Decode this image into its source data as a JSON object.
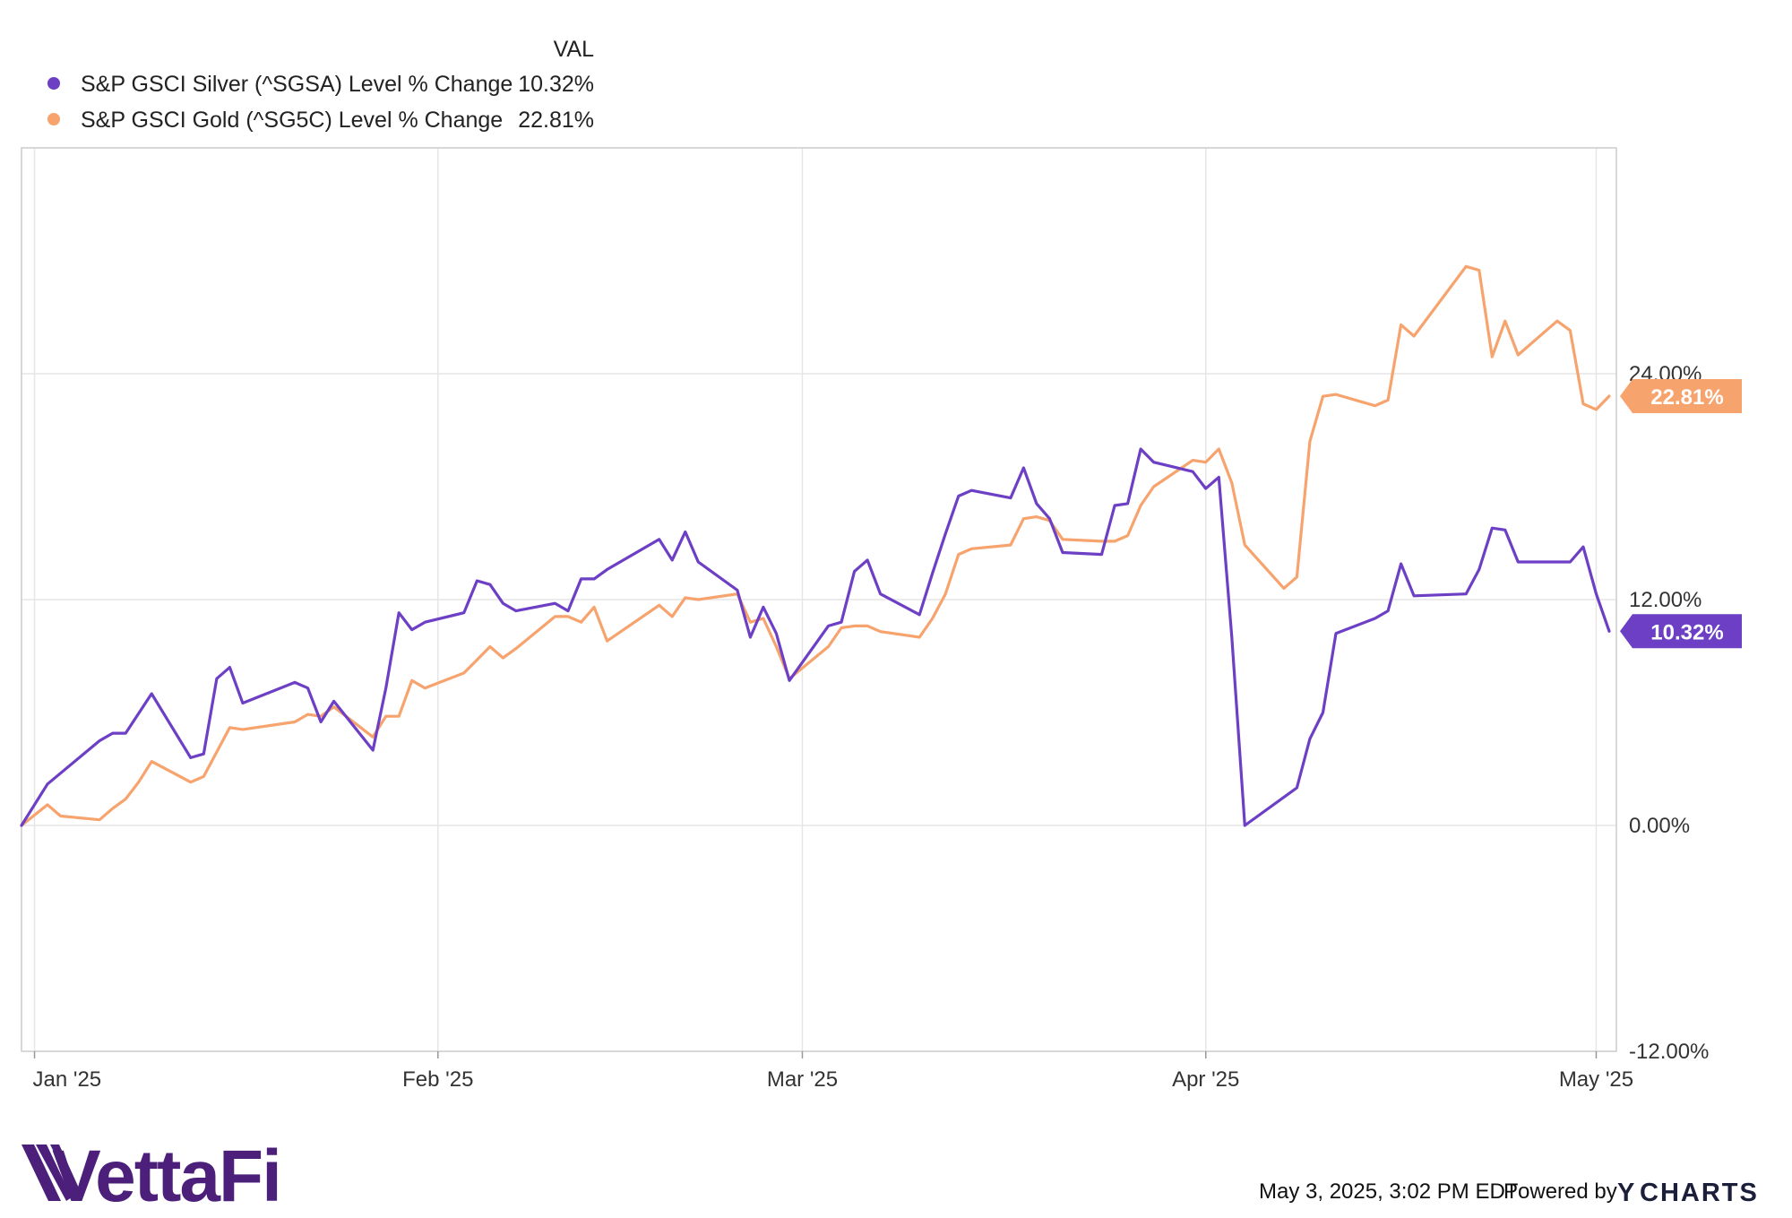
{
  "colors": {
    "silver": "#6c3fc5",
    "gold": "#f7a36d",
    "grid": "#e6e6e6",
    "border": "#cccccc",
    "logo": "#4b1f7a",
    "ycharts_y": "#1f6fd1"
  },
  "legend": {
    "header": "VAL",
    "items": [
      {
        "name": "S&P GSCI Silver (^SGSA) Level % Change",
        "value": "10.32%",
        "color": "#6c3fc5"
      },
      {
        "name": "S&P GSCI Gold (^SG5C) Level % Change",
        "value": "22.81%",
        "color": "#f7a36d"
      }
    ]
  },
  "chart_data": {
    "type": "line",
    "xlim": [
      "2024-12-31",
      "2025-05-02"
    ],
    "ylim": [
      -12,
      36
    ],
    "x_ticks": [
      {
        "date": "2025-01-01",
        "label": "Jan '25"
      },
      {
        "date": "2025-02-01",
        "label": "Feb '25"
      },
      {
        "date": "2025-03-01",
        "label": "Mar '25"
      },
      {
        "date": "2025-04-01",
        "label": "Apr '25"
      },
      {
        "date": "2025-05-01",
        "label": "May '25"
      }
    ],
    "y_ticks": [
      {
        "value": 24,
        "label": "24.00%"
      },
      {
        "value": 12,
        "label": "12.00%"
      },
      {
        "value": 0,
        "label": "0.00%"
      },
      {
        "value": -12,
        "label": "-12.00%"
      }
    ],
    "grid": true,
    "legend_position": "top-left",
    "series": [
      {
        "name": "S&P GSCI Silver (^SGSA) Level % Change",
        "color": "#6c3fc5",
        "last_label": "10.32%",
        "points": [
          [
            "2024-12-31",
            0.0
          ],
          [
            "2025-01-02",
            2.2
          ],
          [
            "2025-01-06",
            4.5
          ],
          [
            "2025-01-07",
            4.9
          ],
          [
            "2025-01-08",
            4.9
          ],
          [
            "2025-01-10",
            7.0
          ],
          [
            "2025-01-13",
            3.6
          ],
          [
            "2025-01-14",
            3.8
          ],
          [
            "2025-01-15",
            7.8
          ],
          [
            "2025-01-16",
            8.4
          ],
          [
            "2025-01-17",
            6.5
          ],
          [
            "2025-01-21",
            7.6
          ],
          [
            "2025-01-22",
            7.3
          ],
          [
            "2025-01-23",
            5.5
          ],
          [
            "2025-01-24",
            6.6
          ],
          [
            "2025-01-27",
            4.0
          ],
          [
            "2025-01-28",
            7.3
          ],
          [
            "2025-01-29",
            11.3
          ],
          [
            "2025-01-30",
            10.4
          ],
          [
            "2025-01-31",
            10.8
          ],
          [
            "2025-02-03",
            11.3
          ],
          [
            "2025-02-04",
            13.0
          ],
          [
            "2025-02-05",
            12.8
          ],
          [
            "2025-02-06",
            11.8
          ],
          [
            "2025-02-07",
            11.4
          ],
          [
            "2025-02-10",
            11.8
          ],
          [
            "2025-02-11",
            11.4
          ],
          [
            "2025-02-12",
            13.1
          ],
          [
            "2025-02-13",
            13.1
          ],
          [
            "2025-02-14",
            13.6
          ],
          [
            "2025-02-18",
            15.2
          ],
          [
            "2025-02-19",
            14.1
          ],
          [
            "2025-02-20",
            15.6
          ],
          [
            "2025-02-21",
            14.0
          ],
          [
            "2025-02-24",
            12.5
          ],
          [
            "2025-02-25",
            10.0
          ],
          [
            "2025-02-26",
            11.6
          ],
          [
            "2025-02-27",
            10.2
          ],
          [
            "2025-02-28",
            7.7
          ],
          [
            "2025-03-03",
            10.6
          ],
          [
            "2025-03-04",
            10.8
          ],
          [
            "2025-03-05",
            13.5
          ],
          [
            "2025-03-06",
            14.1
          ],
          [
            "2025-03-07",
            12.3
          ],
          [
            "2025-03-10",
            11.2
          ],
          [
            "2025-03-11",
            13.4
          ],
          [
            "2025-03-12",
            15.5
          ],
          [
            "2025-03-13",
            17.5
          ],
          [
            "2025-03-14",
            17.8
          ],
          [
            "2025-03-17",
            17.4
          ],
          [
            "2025-03-18",
            19.0
          ],
          [
            "2025-03-19",
            17.1
          ],
          [
            "2025-03-20",
            16.3
          ],
          [
            "2025-03-21",
            14.5
          ],
          [
            "2025-03-24",
            14.4
          ],
          [
            "2025-03-25",
            17.0
          ],
          [
            "2025-03-26",
            17.1
          ],
          [
            "2025-03-27",
            20.0
          ],
          [
            "2025-03-28",
            19.3
          ],
          [
            "2025-03-31",
            18.8
          ],
          [
            "2025-04-01",
            17.9
          ],
          [
            "2025-04-02",
            18.5
          ],
          [
            "2025-04-03",
            10.0
          ],
          [
            "2025-04-04",
            0.0
          ],
          [
            "2025-04-08",
            2.0
          ],
          [
            "2025-04-09",
            4.6
          ],
          [
            "2025-04-10",
            6.0
          ],
          [
            "2025-04-11",
            10.2
          ],
          [
            "2025-04-14",
            11.0
          ],
          [
            "2025-04-15",
            11.4
          ],
          [
            "2025-04-16",
            13.9
          ],
          [
            "2025-04-17",
            12.2
          ],
          [
            "2025-04-21",
            12.3
          ],
          [
            "2025-04-22",
            13.6
          ],
          [
            "2025-04-23",
            15.8
          ],
          [
            "2025-04-24",
            15.7
          ],
          [
            "2025-04-25",
            14.0
          ],
          [
            "2025-04-28",
            14.0
          ],
          [
            "2025-04-29",
            14.0
          ],
          [
            "2025-04-30",
            14.8
          ],
          [
            "2025-05-01",
            12.3
          ],
          [
            "2025-05-02",
            10.32
          ]
        ]
      },
      {
        "name": "S&P GSCI Gold (^SG5C) Level % Change",
        "color": "#f7a36d",
        "last_label": "22.81%",
        "points": [
          [
            "2024-12-31",
            0.0
          ],
          [
            "2025-01-02",
            1.1
          ],
          [
            "2025-01-03",
            0.5
          ],
          [
            "2025-01-06",
            0.3
          ],
          [
            "2025-01-07",
            0.9
          ],
          [
            "2025-01-08",
            1.4
          ],
          [
            "2025-01-09",
            2.3
          ],
          [
            "2025-01-10",
            3.4
          ],
          [
            "2025-01-13",
            2.3
          ],
          [
            "2025-01-14",
            2.6
          ],
          [
            "2025-01-16",
            5.2
          ],
          [
            "2025-01-17",
            5.1
          ],
          [
            "2025-01-21",
            5.5
          ],
          [
            "2025-01-22",
            5.9
          ],
          [
            "2025-01-23",
            5.8
          ],
          [
            "2025-01-24",
            6.3
          ],
          [
            "2025-01-27",
            4.7
          ],
          [
            "2025-01-28",
            5.8
          ],
          [
            "2025-01-29",
            5.8
          ],
          [
            "2025-01-30",
            7.7
          ],
          [
            "2025-01-31",
            7.3
          ],
          [
            "2025-02-03",
            8.1
          ],
          [
            "2025-02-04",
            8.8
          ],
          [
            "2025-02-05",
            9.5
          ],
          [
            "2025-02-06",
            8.9
          ],
          [
            "2025-02-07",
            9.4
          ],
          [
            "2025-02-10",
            11.1
          ],
          [
            "2025-02-11",
            11.1
          ],
          [
            "2025-02-12",
            10.8
          ],
          [
            "2025-02-13",
            11.6
          ],
          [
            "2025-02-14",
            9.8
          ],
          [
            "2025-02-18",
            11.7
          ],
          [
            "2025-02-19",
            11.1
          ],
          [
            "2025-02-20",
            12.1
          ],
          [
            "2025-02-21",
            12.0
          ],
          [
            "2025-02-24",
            12.3
          ],
          [
            "2025-02-25",
            10.8
          ],
          [
            "2025-02-26",
            11.0
          ],
          [
            "2025-02-27",
            9.5
          ],
          [
            "2025-02-28",
            7.8
          ],
          [
            "2025-03-03",
            9.5
          ],
          [
            "2025-03-04",
            10.5
          ],
          [
            "2025-03-05",
            10.6
          ],
          [
            "2025-03-06",
            10.6
          ],
          [
            "2025-03-07",
            10.3
          ],
          [
            "2025-03-10",
            10.0
          ],
          [
            "2025-03-11",
            11.0
          ],
          [
            "2025-03-12",
            12.3
          ],
          [
            "2025-03-13",
            14.4
          ],
          [
            "2025-03-14",
            14.7
          ],
          [
            "2025-03-17",
            14.9
          ],
          [
            "2025-03-18",
            16.3
          ],
          [
            "2025-03-19",
            16.4
          ],
          [
            "2025-03-20",
            16.2
          ],
          [
            "2025-03-21",
            15.2
          ],
          [
            "2025-03-24",
            15.1
          ],
          [
            "2025-03-25",
            15.1
          ],
          [
            "2025-03-26",
            15.4
          ],
          [
            "2025-03-27",
            17.0
          ],
          [
            "2025-03-28",
            18.0
          ],
          [
            "2025-03-31",
            19.4
          ],
          [
            "2025-04-01",
            19.3
          ],
          [
            "2025-04-02",
            20.0
          ],
          [
            "2025-04-03",
            18.2
          ],
          [
            "2025-04-04",
            14.9
          ],
          [
            "2025-04-07",
            12.6
          ],
          [
            "2025-04-08",
            13.2
          ],
          [
            "2025-04-09",
            20.4
          ],
          [
            "2025-04-10",
            22.8
          ],
          [
            "2025-04-11",
            22.9
          ],
          [
            "2025-04-14",
            22.3
          ],
          [
            "2025-04-15",
            22.6
          ],
          [
            "2025-04-16",
            26.6
          ],
          [
            "2025-04-17",
            26.0
          ],
          [
            "2025-04-21",
            29.7
          ],
          [
            "2025-04-22",
            29.5
          ],
          [
            "2025-04-23",
            24.9
          ],
          [
            "2025-04-24",
            26.8
          ],
          [
            "2025-04-25",
            25.0
          ],
          [
            "2025-04-28",
            26.8
          ],
          [
            "2025-04-29",
            26.3
          ],
          [
            "2025-04-30",
            22.4
          ],
          [
            "2025-05-01",
            22.1
          ],
          [
            "2025-05-02",
            22.81
          ]
        ]
      }
    ]
  },
  "footer": {
    "timestamp": "May 3, 2025, 3:02 PM EDT",
    "powered_by": "Powered by",
    "ycharts_y": "Y",
    "ycharts_rest": "CHARTS",
    "brand": "VettaFi"
  }
}
